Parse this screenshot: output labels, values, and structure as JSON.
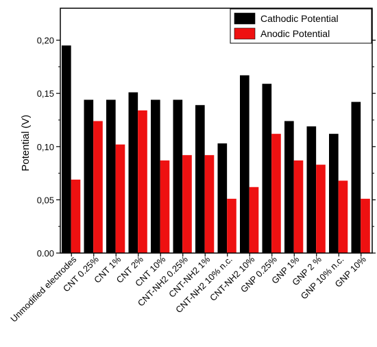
{
  "chart_data": {
    "type": "bar",
    "ylabel": "Potential (V)",
    "xlabel": "",
    "title": "",
    "ylim": [
      0,
      0.23
    ],
    "yticks": [
      "0.00",
      "0,05",
      "0,10",
      "0,15",
      "0,20"
    ],
    "ytick_values": [
      0,
      0.05,
      0.1,
      0.15,
      0.2
    ],
    "grid": false,
    "legend_position": "top-right",
    "categories": [
      "Unmodified electrodes",
      "CNT 0.25%",
      "CNT 1%",
      "CNT 2%",
      "CNT 10%",
      "CNT-NH2 0.25%",
      "CNT-NH2 1%",
      "CNT-NH2 10% n.c.",
      "CNT-NH2 10%",
      "GNP 0.25%",
      "GNP 1%",
      "GNP 2 %",
      "GNP 10% n.c.",
      "GNP 10%"
    ],
    "series": [
      {
        "name": "Cathodic Potential",
        "color": "#000000",
        "values": [
          0.195,
          0.144,
          0.144,
          0.151,
          0.144,
          0.144,
          0.139,
          0.103,
          0.167,
          0.159,
          0.124,
          0.119,
          0.112,
          0.142
        ]
      },
      {
        "name": "Anodic Potential",
        "color": "#ee1111",
        "values": [
          0.069,
          0.124,
          0.102,
          0.134,
          0.087,
          0.092,
          0.092,
          0.051,
          0.062,
          0.112,
          0.087,
          0.083,
          0.068,
          0.051
        ]
      }
    ]
  }
}
